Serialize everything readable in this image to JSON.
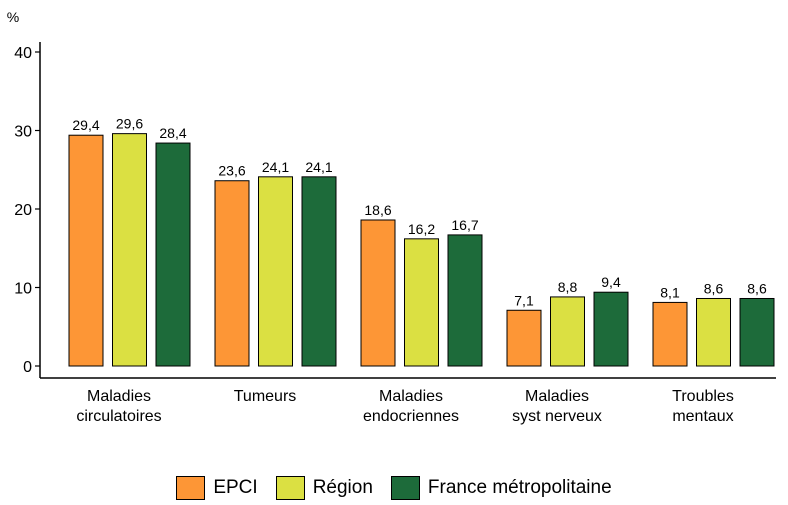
{
  "chart_data": {
    "type": "bar",
    "y_unit_label": "%",
    "categories": [
      [
        "Maladies",
        "circulatoires"
      ],
      [
        "Tumeurs"
      ],
      [
        "Maladies",
        "endocriennes"
      ],
      [
        "Maladies",
        "syst nerveux"
      ],
      [
        "Troubles",
        "mentaux"
      ]
    ],
    "series": [
      {
        "name": "EPCI",
        "color": "#fd9636",
        "values": [
          29.4,
          23.6,
          18.6,
          7.1,
          8.1
        ],
        "labels": [
          "29,4",
          "23,6",
          "18,6",
          "7,1",
          "8,1"
        ]
      },
      {
        "name": "Région",
        "color": "#dbe042",
        "values": [
          29.6,
          24.1,
          16.2,
          8.8,
          8.6
        ],
        "labels": [
          "29,6",
          "24,1",
          "16,2",
          "8,8",
          "8,6"
        ]
      },
      {
        "name": "France métropolitaine",
        "color": "#1d6b3a",
        "values": [
          28.4,
          24.1,
          16.7,
          9.4,
          8.6
        ],
        "labels": [
          "28,4",
          "24,1",
          "16,7",
          "9,4",
          "8,6"
        ]
      }
    ],
    "ylim": [
      0,
      40
    ],
    "yticks": [
      0,
      10,
      20,
      30,
      40
    ],
    "grid": false,
    "legend_position": "bottom-center"
  }
}
